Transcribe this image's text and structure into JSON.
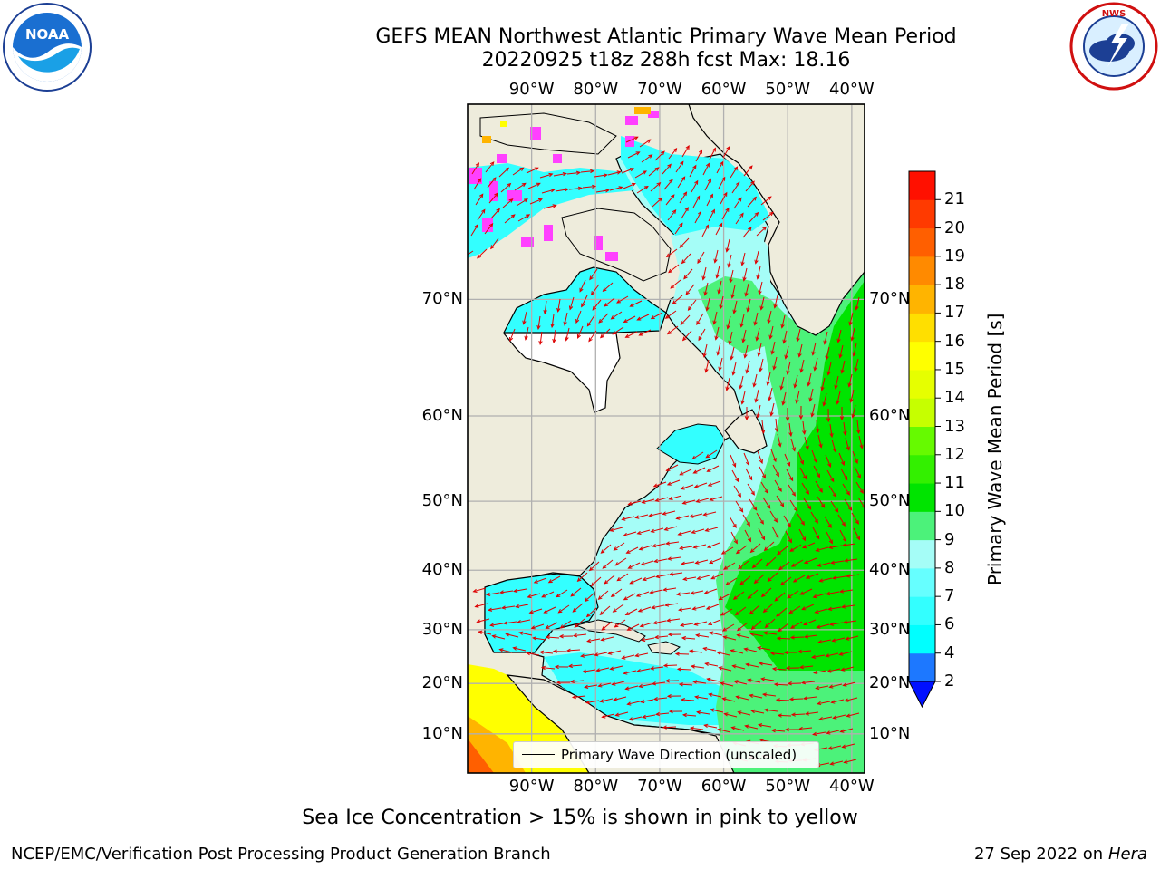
{
  "header": {
    "title_line1": "GEFS MEAN Northwest Atlantic Primary Wave Mean Period",
    "title_line2": "20220925 t18z 288h fcst   Max: 18.16"
  },
  "logos": {
    "noaa": {
      "text": "NOAA",
      "ring_text": "NATIONAL OCEANIC AND ATMOSPHERIC ADMINISTRATION · U.S. DEPARTMENT OF COMMERCE"
    },
    "nws": {
      "ring_text": "NATIONAL WEATHER SERVICE"
    }
  },
  "map": {
    "lon_ticks": [
      "90°W",
      "80°W",
      "70°W",
      "60°W",
      "50°W",
      "40°W"
    ],
    "lat_ticks": [
      "70°N",
      "60°N",
      "50°N",
      "40°N",
      "30°N",
      "20°N",
      "10°N"
    ],
    "lon_values": [
      -90,
      -80,
      -70,
      -60,
      -50,
      -40
    ],
    "lat_values": [
      70,
      60,
      50,
      40,
      30,
      20,
      10
    ],
    "lon_range": [
      -100,
      -38
    ],
    "lat_range": [
      2,
      80
    ],
    "projection": "mercator",
    "legend": "Primary Wave Direction (unscaled)",
    "colors": {
      "land": "#eeecdc",
      "grid": "#b0b0b0",
      "arrows": "#dd0000",
      "sea_ice": "#ff40ff"
    }
  },
  "colorbar": {
    "label": "Primary Wave Mean Period [s]",
    "tick_labels": [
      "2",
      "4",
      "6",
      "7",
      "8",
      "9",
      "10",
      "11",
      "12",
      "13",
      "14",
      "15",
      "16",
      "17",
      "18",
      "19",
      "20",
      "21"
    ],
    "extend": "min",
    "under_color": "#0010ff",
    "colors": [
      "#1d78ff",
      "#00ffff",
      "#33ffff",
      "#66ffff",
      "#a5fdf7",
      "#4cf27a",
      "#00e400",
      "#33f000",
      "#66fa00",
      "#c6ff00",
      "#e6ff00",
      "#ffff00",
      "#ffdf00",
      "#ffb400",
      "#ff8a00",
      "#ff5f00",
      "#ff3a00",
      "#ff1000"
    ]
  },
  "footer": {
    "note": "Sea Ice Concentration > 15% is shown in pink to yellow",
    "branch": "NCEP/EMC/Verification Post Processing Product Generation Branch",
    "date": "27 Sep 2022 on",
    "host": "Hera"
  }
}
